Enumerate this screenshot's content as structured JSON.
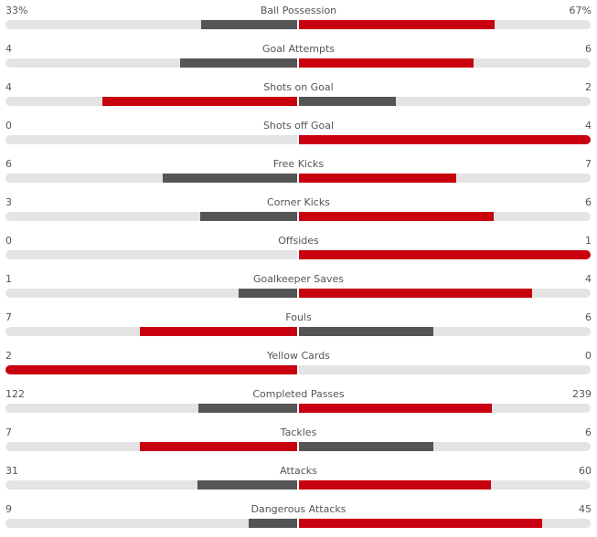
{
  "colors": {
    "leading": "#c8000f",
    "trailing": "#555555",
    "track": "#e4e4e4"
  },
  "stats": [
    {
      "name": "Ball Possession",
      "home": "33%",
      "away": "67%",
      "home_share": 0.33,
      "away_share": 0.67
    },
    {
      "name": "Goal Attempts",
      "home": "4",
      "away": "6",
      "home_share": 0.4,
      "away_share": 0.6
    },
    {
      "name": "Shots on Goal",
      "home": "4",
      "away": "2",
      "home_share": 0.667,
      "away_share": 0.333
    },
    {
      "name": "Shots off Goal",
      "home": "0",
      "away": "4",
      "home_share": 0,
      "away_share": 1
    },
    {
      "name": "Free Kicks",
      "home": "6",
      "away": "7",
      "home_share": 0.462,
      "away_share": 0.538
    },
    {
      "name": "Corner Kicks",
      "home": "3",
      "away": "6",
      "home_share": 0.333,
      "away_share": 0.667
    },
    {
      "name": "Offsides",
      "home": "0",
      "away": "1",
      "home_share": 0,
      "away_share": 1
    },
    {
      "name": "Goalkeeper Saves",
      "home": "1",
      "away": "4",
      "home_share": 0.2,
      "away_share": 0.8
    },
    {
      "name": "Fouls",
      "home": "7",
      "away": "6",
      "home_share": 0.538,
      "away_share": 0.462
    },
    {
      "name": "Yellow Cards",
      "home": "2",
      "away": "0",
      "home_share": 1,
      "away_share": 0
    },
    {
      "name": "Completed Passes",
      "home": "122",
      "away": "239",
      "home_share": 0.338,
      "away_share": 0.662
    },
    {
      "name": "Tackles",
      "home": "7",
      "away": "6",
      "home_share": 0.538,
      "away_share": 0.462
    },
    {
      "name": "Attacks",
      "home": "31",
      "away": "60",
      "home_share": 0.341,
      "away_share": 0.659
    },
    {
      "name": "Dangerous Attacks",
      "home": "9",
      "away": "45",
      "home_share": 0.167,
      "away_share": 0.833
    }
  ]
}
